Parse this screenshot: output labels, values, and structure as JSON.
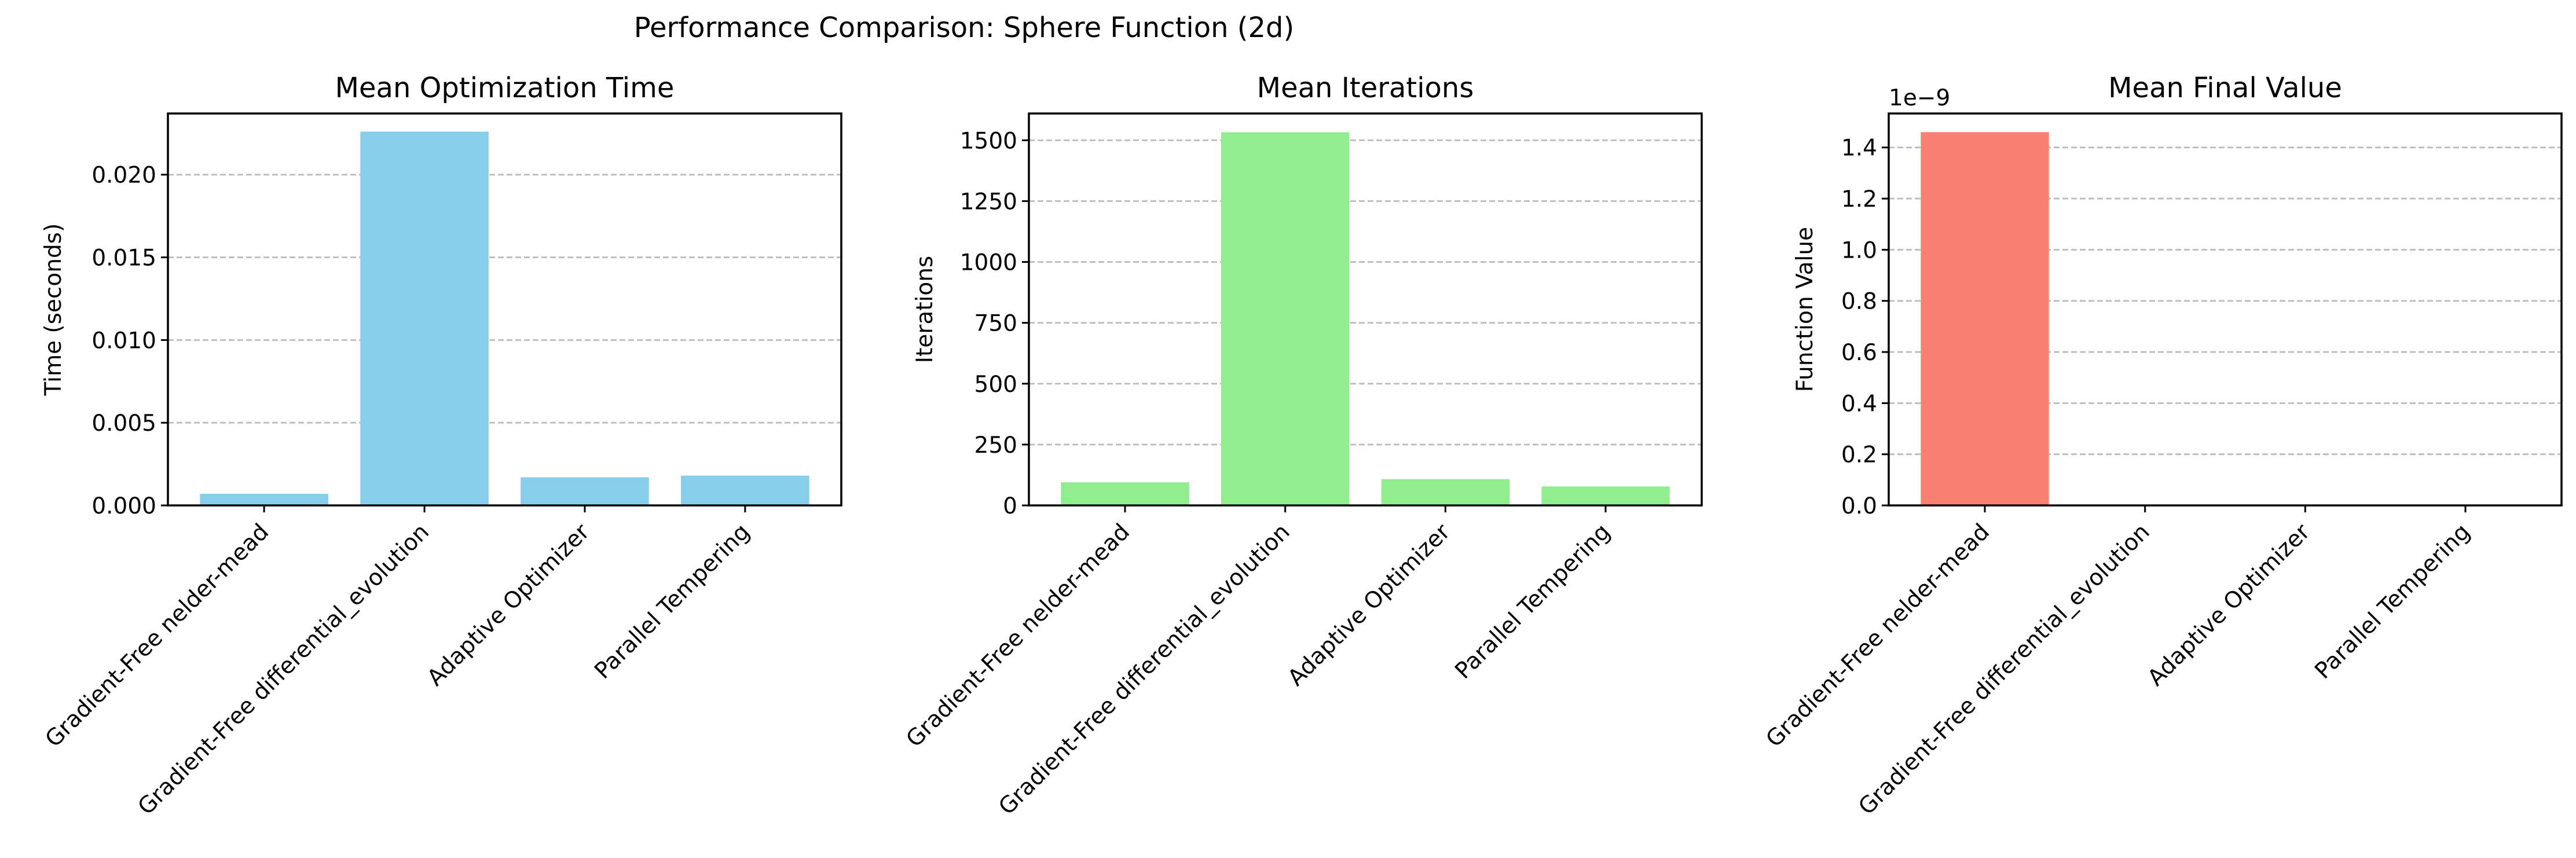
{
  "title": "Performance Comparison: Sphere Function (2d)",
  "chart_data": [
    {
      "type": "bar",
      "title": "Mean Optimization Time",
      "xlabel": "",
      "ylabel": "Time (seconds)",
      "categories": [
        "Gradient-Free nelder-mead",
        "Gradient-Free differential_evolution",
        "Adaptive Optimizer",
        "Parallel Tempering"
      ],
      "values": [
        0.0007,
        0.0226,
        0.0017,
        0.0018
      ],
      "ylim": [
        0,
        0.0237
      ],
      "yticks": [
        0,
        0.005,
        0.01,
        0.015,
        0.02
      ],
      "ytick_labels": [
        "0.000",
        "0.005",
        "0.010",
        "0.015",
        "0.020"
      ],
      "offset_label": "",
      "color": "#87CEEB",
      "grid": "y-dashed"
    },
    {
      "type": "bar",
      "title": "Mean Iterations",
      "xlabel": "",
      "ylabel": "Iterations",
      "categories": [
        "Gradient-Free nelder-mead",
        "Gradient-Free differential_evolution",
        "Adaptive Optimizer",
        "Parallel Tempering"
      ],
      "values": [
        95,
        1533,
        108,
        78
      ],
      "ylim": [
        0,
        1610
      ],
      "yticks": [
        0,
        250,
        500,
        750,
        1000,
        1250,
        1500
      ],
      "ytick_labels": [
        "0",
        "250",
        "500",
        "750",
        "1000",
        "1250",
        "1500"
      ],
      "offset_label": "",
      "color": "#90EE90",
      "grid": "y-dashed"
    },
    {
      "type": "bar",
      "title": "Mean Final Value",
      "xlabel": "",
      "ylabel": "Function Value",
      "categories": [
        "Gradient-Free nelder-mead",
        "Gradient-Free differential_evolution",
        "Adaptive Optimizer",
        "Parallel Tempering"
      ],
      "values": [
        1.46e-09,
        0,
        0,
        0
      ],
      "ylim": [
        0,
        1.533e-09
      ],
      "yticks": [
        0,
        2e-10,
        4e-10,
        6e-10,
        8e-10,
        1e-09,
        1.2e-09,
        1.4e-09
      ],
      "ytick_labels": [
        "0.0",
        "0.2",
        "0.4",
        "0.6",
        "0.8",
        "1.0",
        "1.2",
        "1.4"
      ],
      "offset_label": "1e−9",
      "color": "#FA8072",
      "grid": "y-dashed"
    }
  ]
}
